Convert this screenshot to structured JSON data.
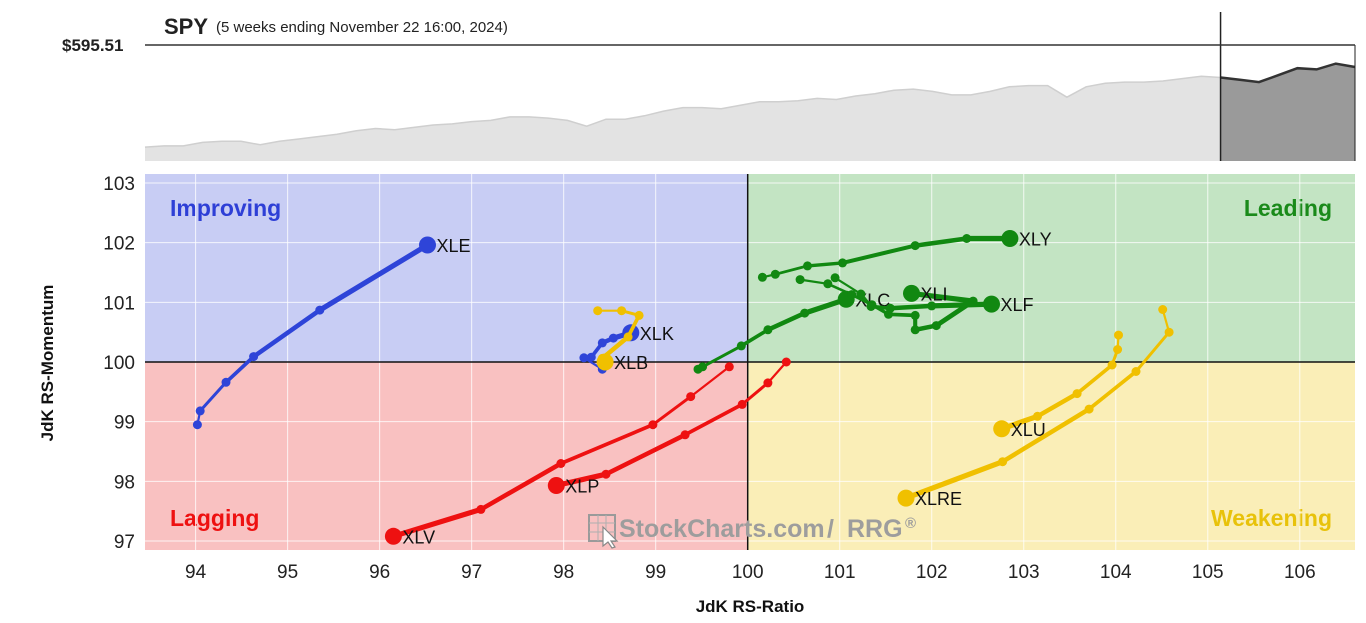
{
  "header": {
    "symbol": "SPY",
    "subtitle": "(5 weeks ending November 22 16:00, 2024)",
    "price": "$595.51"
  },
  "watermark": {
    "text": "StockCharts.com",
    "suffix": "RRG",
    "reg": "®"
  },
  "quadrants": {
    "improving": {
      "label": "Improving",
      "color": "#2e3fd6",
      "fill": "#c8cdf4"
    },
    "leading": {
      "label": "Leading",
      "color": "#1a8a1a",
      "fill": "#c3e4c3"
    },
    "lagging": {
      "label": "Lagging",
      "color": "#ee1111",
      "fill": "#f9c1c1"
    },
    "weakening": {
      "label": "Weakening",
      "color": "#e8c20a",
      "fill": "#faeeb7"
    }
  },
  "chart_data": [
    {
      "type": "area",
      "title": "SPY",
      "subtitle": "(5 weeks ending November 22 16:00, 2024)",
      "last_value_label": "$595.51",
      "highlighted_window": "last 5 weeks",
      "y_relative": [
        0.12,
        0.13,
        0.13,
        0.16,
        0.17,
        0.17,
        0.14,
        0.17,
        0.19,
        0.21,
        0.23,
        0.26,
        0.28,
        0.27,
        0.29,
        0.31,
        0.32,
        0.34,
        0.35,
        0.38,
        0.38,
        0.37,
        0.35,
        0.3,
        0.36,
        0.36,
        0.39,
        0.43,
        0.46,
        0.46,
        0.45,
        0.48,
        0.51,
        0.51,
        0.52,
        0.54,
        0.53,
        0.56,
        0.58,
        0.61,
        0.62,
        0.6,
        0.57,
        0.57,
        0.6,
        0.64,
        0.65,
        0.65,
        0.55,
        0.64,
        0.67,
        0.68,
        0.68,
        0.69,
        0.71,
        0.73,
        0.72,
        0.7,
        0.68,
        0.74,
        0.8,
        0.79,
        0.84,
        0.81
      ],
      "window_start_index": 56
    },
    {
      "type": "scatter",
      "subtype": "relative rotation graph",
      "xlabel": "JdK RS-Ratio",
      "ylabel": "JdK RS-Momentum",
      "xlim": [
        93.45,
        106.6
      ],
      "ylim": [
        96.85,
        103.15
      ],
      "xticks": [
        94,
        95,
        96,
        97,
        98,
        99,
        100,
        101,
        102,
        103,
        104,
        105,
        106
      ],
      "yticks": [
        97,
        98,
        99,
        100,
        101,
        102,
        103
      ],
      "center": [
        100,
        100
      ],
      "grid": true,
      "series": [
        {
          "name": "XLE",
          "color": "#2e44d8",
          "points": [
            [
              94.02,
              98.95
            ],
            [
              94.05,
              99.18
            ],
            [
              94.33,
              99.66
            ],
            [
              94.63,
              100.09
            ],
            [
              95.35,
              100.87
            ],
            [
              96.52,
              101.96
            ]
          ]
        },
        {
          "name": "XLK",
          "color": "#2e44d8",
          "points": [
            [
              98.42,
              99.88
            ],
            [
              98.22,
              100.07
            ],
            [
              98.3,
              100.08
            ],
            [
              98.42,
              100.32
            ],
            [
              98.54,
              100.4
            ],
            [
              98.73,
              100.49
            ]
          ]
        },
        {
          "name": "XLB",
          "color": "#f0c000",
          "points": [
            [
              98.37,
              100.86
            ],
            [
              98.63,
              100.86
            ],
            [
              98.82,
              100.78
            ],
            [
              98.7,
              100.42
            ],
            [
              98.42,
              100.06
            ],
            [
              98.45,
              100.0
            ]
          ]
        },
        {
          "name": "XLV",
          "color": "#ee1111",
          "points": [
            [
              99.8,
              99.92
            ],
            [
              99.38,
              99.42
            ],
            [
              98.97,
              98.95
            ],
            [
              97.97,
              98.3
            ],
            [
              97.1,
              97.53
            ],
            [
              96.15,
              97.08
            ]
          ]
        },
        {
          "name": "XLP",
          "color": "#ee1111",
          "points": [
            [
              100.42,
              100.0
            ],
            [
              100.22,
              99.65
            ],
            [
              99.94,
              99.29
            ],
            [
              99.32,
              98.78
            ],
            [
              98.46,
              98.12
            ],
            [
              97.92,
              97.93
            ]
          ]
        },
        {
          "name": "XLC",
          "color": "#118811",
          "points": [
            [
              99.46,
              99.88
            ],
            [
              99.51,
              99.92
            ],
            [
              99.93,
              100.27
            ],
            [
              100.22,
              100.54
            ],
            [
              100.62,
              100.82
            ],
            [
              101.07,
              101.05
            ]
          ]
        },
        {
          "name": "XLY",
          "color": "#118811",
          "points": [
            [
              100.16,
              101.42
            ],
            [
              100.3,
              101.47
            ],
            [
              100.65,
              101.61
            ],
            [
              101.03,
              101.66
            ],
            [
              101.82,
              101.95
            ],
            [
              102.38,
              102.07
            ],
            [
              102.85,
              102.07
            ]
          ]
        },
        {
          "name": "XLI",
          "color": "#118811",
          "points": [
            [
              100.57,
              101.38
            ],
            [
              100.87,
              101.31
            ],
            [
              101.13,
              101.13
            ],
            [
              101.35,
              100.96
            ],
            [
              101.53,
              100.8
            ],
            [
              101.82,
              100.78
            ],
            [
              101.82,
              100.54
            ],
            [
              102.05,
              100.61
            ],
            [
              102.45,
              101.02
            ],
            [
              101.78,
              101.15
            ]
          ]
        },
        {
          "name": "XLF",
          "color": "#118811",
          "points": [
            [
              100.95,
              101.41
            ],
            [
              101.23,
              101.14
            ],
            [
              101.34,
              100.93
            ],
            [
              101.55,
              100.9
            ],
            [
              102.0,
              100.94
            ],
            [
              102.65,
              100.97
            ]
          ]
        },
        {
          "name": "XLU",
          "color": "#f0c000",
          "points": [
            [
              104.03,
              100.45
            ],
            [
              104.02,
              100.21
            ],
            [
              103.96,
              99.95
            ],
            [
              103.58,
              99.47
            ],
            [
              103.15,
              99.09
            ],
            [
              102.76,
              98.88
            ]
          ]
        },
        {
          "name": "XLRE",
          "color": "#f0c000",
          "points": [
            [
              104.51,
              100.88
            ],
            [
              104.58,
              100.5
            ],
            [
              104.22,
              99.84
            ],
            [
              103.71,
              99.21
            ],
            [
              102.77,
              98.33
            ],
            [
              101.72,
              97.72
            ]
          ]
        }
      ]
    }
  ]
}
